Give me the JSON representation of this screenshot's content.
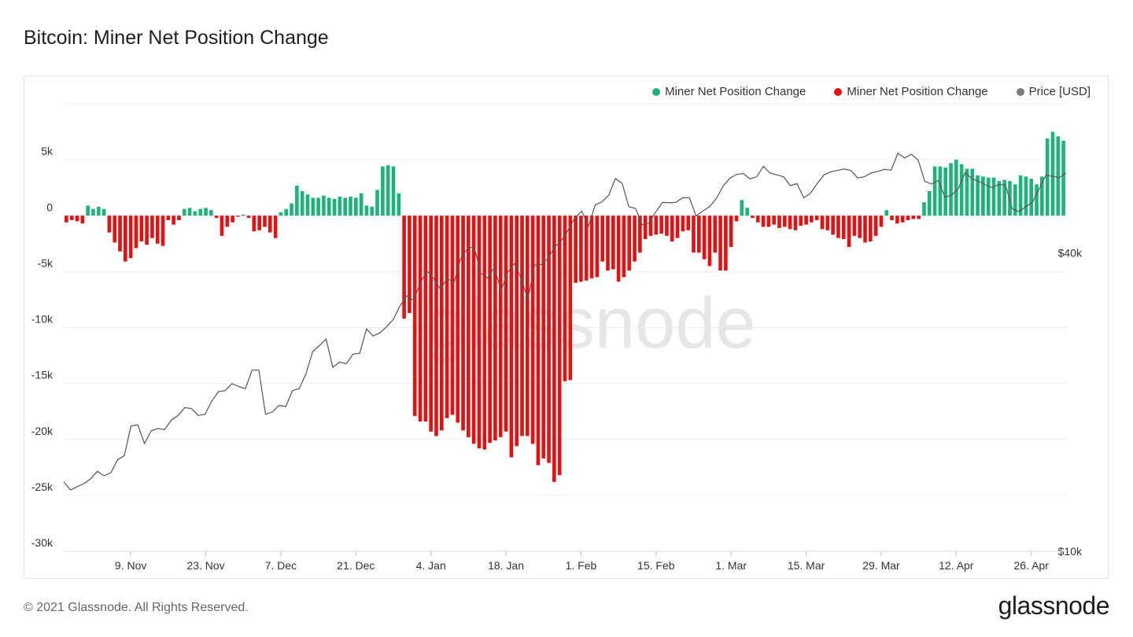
{
  "page": {
    "title": "Bitcoin: Miner Net Position Change",
    "copyright": "© 2021 Glassnode. All Rights Reserved.",
    "brand": "glassnode",
    "watermark": "glassnode"
  },
  "legend": [
    {
      "label": "Miner Net Position Change",
      "color": "#1fb37a"
    },
    {
      "label": "Miner Net Position Change",
      "color": "#e01212"
    },
    {
      "label": "Price [USD]",
      "color": "#7a7a7a"
    }
  ],
  "chart_data": {
    "type": "bar",
    "title": "Bitcoin: Miner Net Position Change",
    "positive_color": "#1fb37a",
    "negative_color": "#e01212",
    "price_color": "#555555",
    "y_left": {
      "min": -30000,
      "max": 10000,
      "ticks": [
        5000,
        0,
        -5000,
        -10000,
        -15000,
        -20000,
        -25000,
        -30000
      ],
      "tick_labels": [
        "5k",
        "0",
        "-5k",
        "-10k",
        "-15k",
        "-20k",
        "-25k",
        "-30k"
      ]
    },
    "y_right": {
      "scale": "log",
      "min": 10000,
      "max": 80000,
      "ticks": [
        40000,
        10000
      ],
      "tick_labels": [
        "$40k",
        "$10k"
      ]
    },
    "x_tick_labels": [
      "9. Nov",
      "23. Nov",
      "7. Dec",
      "21. Dec",
      "4. Jan",
      "18. Jan",
      "1. Feb",
      "15. Feb",
      "1. Mar",
      "15. Mar",
      "29. Mar",
      "12. Apr",
      "26. Apr"
    ],
    "x_tick_day_index": [
      12,
      26,
      40,
      54,
      68,
      82,
      96,
      110,
      124,
      138,
      152,
      166,
      180
    ],
    "grid": true,
    "legend_position": "top-right",
    "values": [
      -600,
      -400,
      -500,
      -700,
      900,
      600,
      800,
      600,
      -1500,
      -2400,
      -3200,
      -4100,
      -3800,
      -2900,
      -2300,
      -2600,
      -2000,
      -2500,
      -2700,
      -400,
      -800,
      -400,
      600,
      700,
      400,
      600,
      700,
      500,
      -200,
      -1800,
      -1000,
      -600,
      -100,
      100,
      -200,
      -1400,
      -1300,
      -1000,
      -1500,
      -2000,
      300,
      600,
      1100,
      2700,
      2200,
      1900,
      1600,
      1600,
      1800,
      1600,
      1500,
      1700,
      1600,
      1700,
      1600,
      2000,
      900,
      800,
      2300,
      4400,
      4500,
      4400,
      2000,
      -9200,
      -8700,
      -17900,
      -18400,
      -18400,
      -19300,
      -19700,
      -19200,
      -18100,
      -17800,
      -18500,
      -19200,
      -19800,
      -20400,
      -20800,
      -20900,
      -20300,
      -20100,
      -19800,
      -19300,
      -21600,
      -20600,
      -19700,
      -19700,
      -20400,
      -22300,
      -21700,
      -22100,
      -23800,
      -23200,
      -14800,
      -14700,
      -6000,
      -5900,
      -5800,
      -5600,
      -5500,
      -4100,
      -4900,
      -4800,
      -5900,
      -5500,
      -4900,
      -4100,
      -3300,
      -2100,
      -1800,
      -1700,
      -1600,
      -1800,
      -2300,
      -2000,
      -1400,
      -1300,
      -3300,
      -3300,
      -3900,
      -4500,
      -3300,
      -4900,
      -4900,
      -2800,
      -500,
      1400,
      700,
      -200,
      -600,
      -1000,
      -1000,
      -800,
      -1100,
      -1000,
      -1200,
      -1300,
      -900,
      -800,
      -600,
      -400,
      -1200,
      -1300,
      -1700,
      -2000,
      -2100,
      -2800,
      -1800,
      -2000,
      -2400,
      -2300,
      -1800,
      -1000,
      500,
      -400,
      -700,
      -600,
      -400,
      -300,
      -300,
      1200,
      2200,
      4400,
      4400,
      4300,
      4700,
      5000,
      4600,
      4200,
      4200,
      3600,
      3500,
      3400,
      3400,
      3100,
      3200,
      3100,
      2800,
      3600,
      3500,
      3300,
      2800,
      3500,
      6900,
      7500,
      7100,
      6700
    ],
    "price": [
      13800,
      13300,
      13500,
      13700,
      14000,
      14500,
      14200,
      14400,
      15300,
      15600,
      17900,
      18000,
      16500,
      17500,
      17700,
      17600,
      18400,
      18800,
      19500,
      19400,
      18800,
      18900,
      20100,
      21000,
      21100,
      21800,
      21500,
      21300,
      23200,
      23200,
      18900,
      19100,
      19700,
      19600,
      21100,
      21300,
      22800,
      25300,
      26000,
      26800,
      23500,
      24100,
      23900,
      25000,
      25100,
      28100,
      27200,
      27600,
      28400,
      29400,
      31300,
      32800,
      32100,
      34800,
      36800,
      35500,
      33800,
      35600,
      34800,
      39000,
      40800,
      41200,
      36400,
      35600,
      37400,
      33600,
      36600,
      38100,
      35500,
      32300,
      37800,
      37900,
      39000,
      41200,
      42400,
      44600,
      47100,
      48600,
      45300,
      50000,
      50700,
      52300,
      56500,
      55300,
      49600,
      49200,
      45600,
      46000,
      48400,
      50600,
      50500,
      50600,
      51700,
      51700,
      47500,
      48600,
      49600,
      51500,
      54500,
      56600,
      57600,
      57900,
      56400,
      57000,
      59800,
      58000,
      57500,
      57000,
      54700,
      55200,
      51700,
      52800,
      55200,
      57500,
      58300,
      58700,
      59100,
      58700,
      56700,
      57000,
      58000,
      58400,
      59000,
      58800,
      63600,
      62200,
      63300,
      61600,
      55800,
      55100,
      56000,
      51800,
      52400,
      54000,
      58100,
      56500,
      55800,
      54900,
      54200,
      55000,
      54800,
      49100,
      48500,
      49600,
      50600,
      53900,
      57400,
      57100,
      56800,
      58000
    ]
  }
}
